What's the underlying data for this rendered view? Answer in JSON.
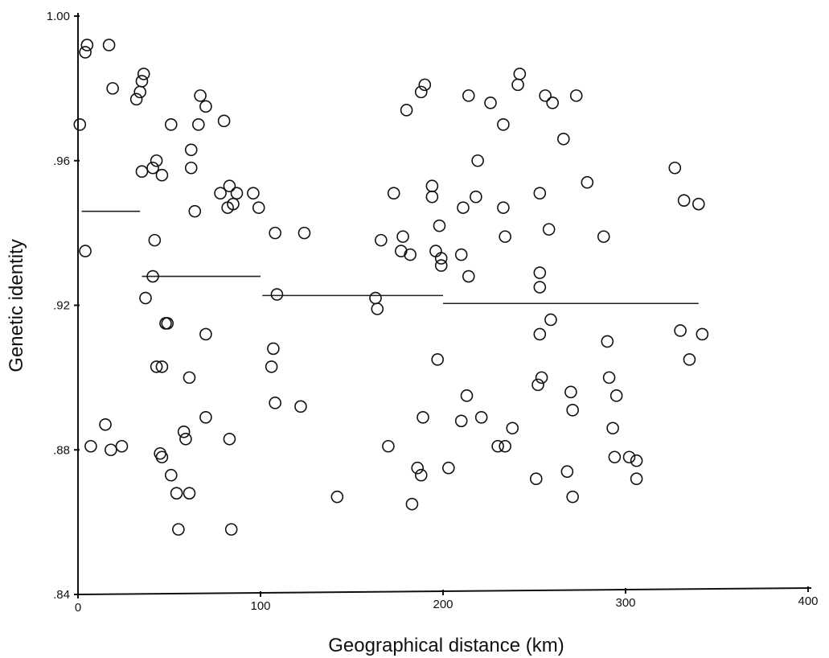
{
  "chart_data": {
    "type": "scatter",
    "xlabel": "Geographical distance (km)",
    "ylabel": "Genetic identity",
    "xlim": [
      0,
      400
    ],
    "ylim": [
      0.84,
      1.0
    ],
    "x_ticks": [
      0,
      100,
      200,
      300,
      400
    ],
    "x_tick_labels": [
      "0",
      "100",
      "200",
      "300",
      "400"
    ],
    "y_ticks": [
      0.84,
      0.88,
      0.92,
      0.96,
      1.0
    ],
    "y_tick_labels": [
      ".84",
      ".88",
      ".92",
      ".96",
      "1.00"
    ],
    "grid": false,
    "marker": "open-circle",
    "points": [
      {
        "x": 4,
        "y": 0.99
      },
      {
        "x": 5,
        "y": 0.992
      },
      {
        "x": 17,
        "y": 0.992
      },
      {
        "x": 1,
        "y": 0.97
      },
      {
        "x": 4,
        "y": 0.935
      },
      {
        "x": 7,
        "y": 0.881
      },
      {
        "x": 15,
        "y": 0.887
      },
      {
        "x": 18,
        "y": 0.88
      },
      {
        "x": 24,
        "y": 0.881
      },
      {
        "x": 19,
        "y": 0.98
      },
      {
        "x": 32,
        "y": 0.977
      },
      {
        "x": 34,
        "y": 0.979
      },
      {
        "x": 35,
        "y": 0.982
      },
      {
        "x": 36,
        "y": 0.984
      },
      {
        "x": 35,
        "y": 0.957
      },
      {
        "x": 41,
        "y": 0.958
      },
      {
        "x": 43,
        "y": 0.96
      },
      {
        "x": 46,
        "y": 0.956
      },
      {
        "x": 42,
        "y": 0.938
      },
      {
        "x": 41,
        "y": 0.928
      },
      {
        "x": 37,
        "y": 0.922
      },
      {
        "x": 48,
        "y": 0.915
      },
      {
        "x": 49,
        "y": 0.915
      },
      {
        "x": 43,
        "y": 0.903
      },
      {
        "x": 46,
        "y": 0.903
      },
      {
        "x": 45,
        "y": 0.879
      },
      {
        "x": 46,
        "y": 0.878
      },
      {
        "x": 51,
        "y": 0.873
      },
      {
        "x": 54,
        "y": 0.868
      },
      {
        "x": 55,
        "y": 0.858
      },
      {
        "x": 58,
        "y": 0.885
      },
      {
        "x": 59,
        "y": 0.883
      },
      {
        "x": 61,
        "y": 0.868
      },
      {
        "x": 61,
        "y": 0.9
      },
      {
        "x": 51,
        "y": 0.97
      },
      {
        "x": 62,
        "y": 0.963
      },
      {
        "x": 62,
        "y": 0.958
      },
      {
        "x": 66,
        "y": 0.97
      },
      {
        "x": 67,
        "y": 0.978
      },
      {
        "x": 70,
        "y": 0.975
      },
      {
        "x": 64,
        "y": 0.946
      },
      {
        "x": 70,
        "y": 0.912
      },
      {
        "x": 70,
        "y": 0.889
      },
      {
        "x": 78,
        "y": 0.951
      },
      {
        "x": 80,
        "y": 0.971
      },
      {
        "x": 82,
        "y": 0.947
      },
      {
        "x": 83,
        "y": 0.953
      },
      {
        "x": 85,
        "y": 0.948
      },
      {
        "x": 87,
        "y": 0.951
      },
      {
        "x": 96,
        "y": 0.951
      },
      {
        "x": 99,
        "y": 0.947
      },
      {
        "x": 83,
        "y": 0.883
      },
      {
        "x": 84,
        "y": 0.858
      },
      {
        "x": 108,
        "y": 0.94
      },
      {
        "x": 109,
        "y": 0.923
      },
      {
        "x": 107,
        "y": 0.908
      },
      {
        "x": 106,
        "y": 0.903
      },
      {
        "x": 108,
        "y": 0.893
      },
      {
        "x": 124,
        "y": 0.94
      },
      {
        "x": 122,
        "y": 0.892
      },
      {
        "x": 142,
        "y": 0.867
      },
      {
        "x": 163,
        "y": 0.922
      },
      {
        "x": 164,
        "y": 0.919
      },
      {
        "x": 166,
        "y": 0.938
      },
      {
        "x": 170,
        "y": 0.881
      },
      {
        "x": 173,
        "y": 0.951
      },
      {
        "x": 177,
        "y": 0.935
      },
      {
        "x": 178,
        "y": 0.939
      },
      {
        "x": 180,
        "y": 0.974
      },
      {
        "x": 182,
        "y": 0.934
      },
      {
        "x": 183,
        "y": 0.865
      },
      {
        "x": 186,
        "y": 0.875
      },
      {
        "x": 188,
        "y": 0.873
      },
      {
        "x": 188,
        "y": 0.979
      },
      {
        "x": 190,
        "y": 0.981
      },
      {
        "x": 189,
        "y": 0.889
      },
      {
        "x": 194,
        "y": 0.953
      },
      {
        "x": 194,
        "y": 0.95
      },
      {
        "x": 196,
        "y": 0.935
      },
      {
        "x": 197,
        "y": 0.905
      },
      {
        "x": 198,
        "y": 0.942
      },
      {
        "x": 199,
        "y": 0.933
      },
      {
        "x": 199,
        "y": 0.931
      },
      {
        "x": 203,
        "y": 0.875
      },
      {
        "x": 210,
        "y": 0.934
      },
      {
        "x": 211,
        "y": 0.947
      },
      {
        "x": 210,
        "y": 0.888
      },
      {
        "x": 213,
        "y": 0.895
      },
      {
        "x": 214,
        "y": 0.928
      },
      {
        "x": 214,
        "y": 0.978
      },
      {
        "x": 218,
        "y": 0.95
      },
      {
        "x": 219,
        "y": 0.96
      },
      {
        "x": 221,
        "y": 0.889
      },
      {
        "x": 226,
        "y": 0.976
      },
      {
        "x": 230,
        "y": 0.881
      },
      {
        "x": 233,
        "y": 0.97
      },
      {
        "x": 233,
        "y": 0.947
      },
      {
        "x": 234,
        "y": 0.939
      },
      {
        "x": 234,
        "y": 0.881
      },
      {
        "x": 238,
        "y": 0.886
      },
      {
        "x": 241,
        "y": 0.981
      },
      {
        "x": 242,
        "y": 0.984
      },
      {
        "x": 251,
        "y": 0.872
      },
      {
        "x": 252,
        "y": 0.898
      },
      {
        "x": 253,
        "y": 0.951
      },
      {
        "x": 253,
        "y": 0.929
      },
      {
        "x": 253,
        "y": 0.925
      },
      {
        "x": 253,
        "y": 0.912
      },
      {
        "x": 254,
        "y": 0.9
      },
      {
        "x": 256,
        "y": 0.978
      },
      {
        "x": 258,
        "y": 0.941
      },
      {
        "x": 259,
        "y": 0.916
      },
      {
        "x": 260,
        "y": 0.976
      },
      {
        "x": 266,
        "y": 0.966
      },
      {
        "x": 268,
        "y": 0.874
      },
      {
        "x": 270,
        "y": 0.896
      },
      {
        "x": 271,
        "y": 0.891
      },
      {
        "x": 271,
        "y": 0.867
      },
      {
        "x": 273,
        "y": 0.978
      },
      {
        "x": 279,
        "y": 0.954
      },
      {
        "x": 288,
        "y": 0.939
      },
      {
        "x": 290,
        "y": 0.91
      },
      {
        "x": 291,
        "y": 0.9
      },
      {
        "x": 293,
        "y": 0.886
      },
      {
        "x": 294,
        "y": 0.878
      },
      {
        "x": 295,
        "y": 0.895
      },
      {
        "x": 302,
        "y": 0.878
      },
      {
        "x": 306,
        "y": 0.877
      },
      {
        "x": 306,
        "y": 0.872
      },
      {
        "x": 327,
        "y": 0.958
      },
      {
        "x": 330,
        "y": 0.913
      },
      {
        "x": 332,
        "y": 0.949
      },
      {
        "x": 335,
        "y": 0.905
      },
      {
        "x": 340,
        "y": 0.948
      },
      {
        "x": 342,
        "y": 0.912
      }
    ],
    "mean_lines": [
      {
        "x_start": 2,
        "x_end": 34,
        "y": 0.946
      },
      {
        "x_start": 35,
        "y_end_note": "",
        "x_end": 100,
        "y": 0.928
      },
      {
        "x_start": 101,
        "x_end": 200,
        "y": 0.9227
      },
      {
        "x_start": 200,
        "x_end": 340,
        "y": 0.9205
      }
    ]
  }
}
